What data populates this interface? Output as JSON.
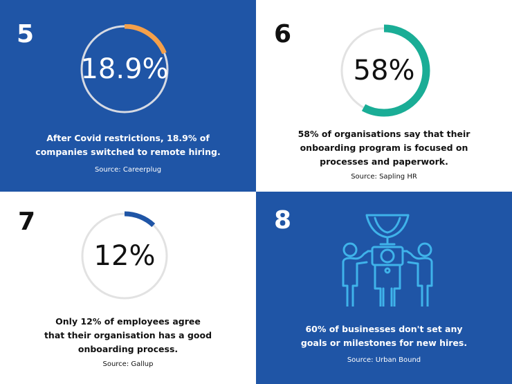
{
  "stats": [
    {
      "number": "5",
      "percent": "18.9%",
      "fraction": 0.189,
      "ring_color": "#f5a04a",
      "track_color": "#d6dae3",
      "description": [
        "After Covid restrictions, 18.9% of",
        "companies switched to remote hiring."
      ],
      "source": "Source: Careerplug"
    },
    {
      "number": "6",
      "percent": "58%",
      "fraction": 0.58,
      "ring_color": "#1aad96",
      "track_color": "#e2e2e2",
      "description": [
        "58% of organisations say that their",
        "onboarding program is focused on",
        "processes and paperwork."
      ],
      "source": "Source: Sapling HR"
    },
    {
      "number": "7",
      "percent": "12%",
      "fraction": 0.12,
      "ring_color": "#1f55a6",
      "track_color": "#e2e2e2",
      "description": [
        "Only 12% of employees agree",
        "that their organisation has a good",
        "onboarding process."
      ],
      "source": "Source: Gallup"
    },
    {
      "number": "8",
      "icon": "team-trophy-icon",
      "icon_color": "#3fb3ea",
      "description": [
        "60% of businesses don't set any",
        "goals or milestones for new hires."
      ],
      "source": "Source: Urban Bound"
    }
  ],
  "colors": {
    "blue_background": "#1f55a6",
    "white_background": "#ffffff"
  }
}
